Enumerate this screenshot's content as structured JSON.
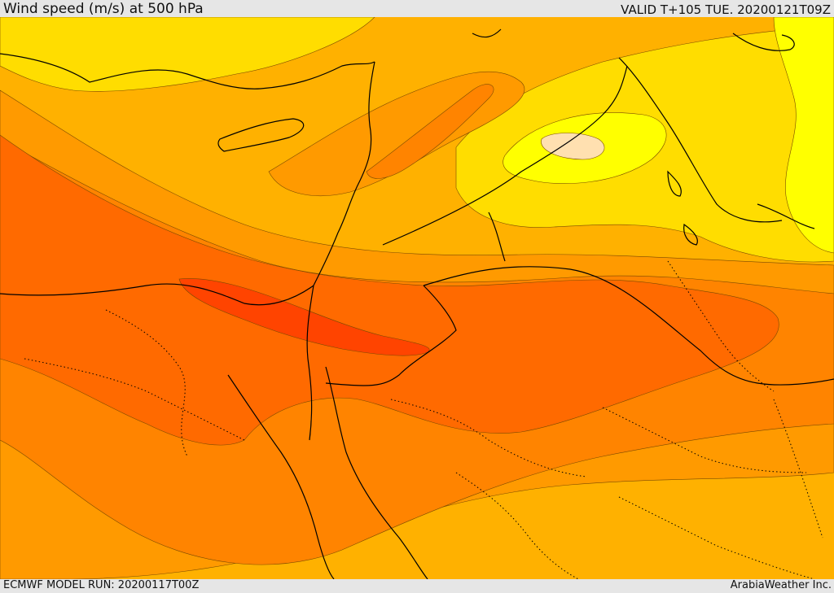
{
  "header": {
    "title": "Wind speed (m/s) at 500 hPa",
    "valid_time": "VALID T+105 TUE. 20200121T09Z"
  },
  "footer": {
    "model_run": "ECMWF MODEL RUN: 20200117T00Z",
    "credit": "ArabiaWeather Inc."
  },
  "colors": {
    "band_lightest": "#ffe0b0",
    "band_yellow": "#ffff00",
    "band_gold": "#ffdd00",
    "band_amber": "#ffb100",
    "band_orange": "#ff9a00",
    "band_dark_orange": "#ff8400",
    "band_red_orange": "#ff6a00",
    "band_strongest": "#ff4400",
    "coastline": "#000000"
  }
}
